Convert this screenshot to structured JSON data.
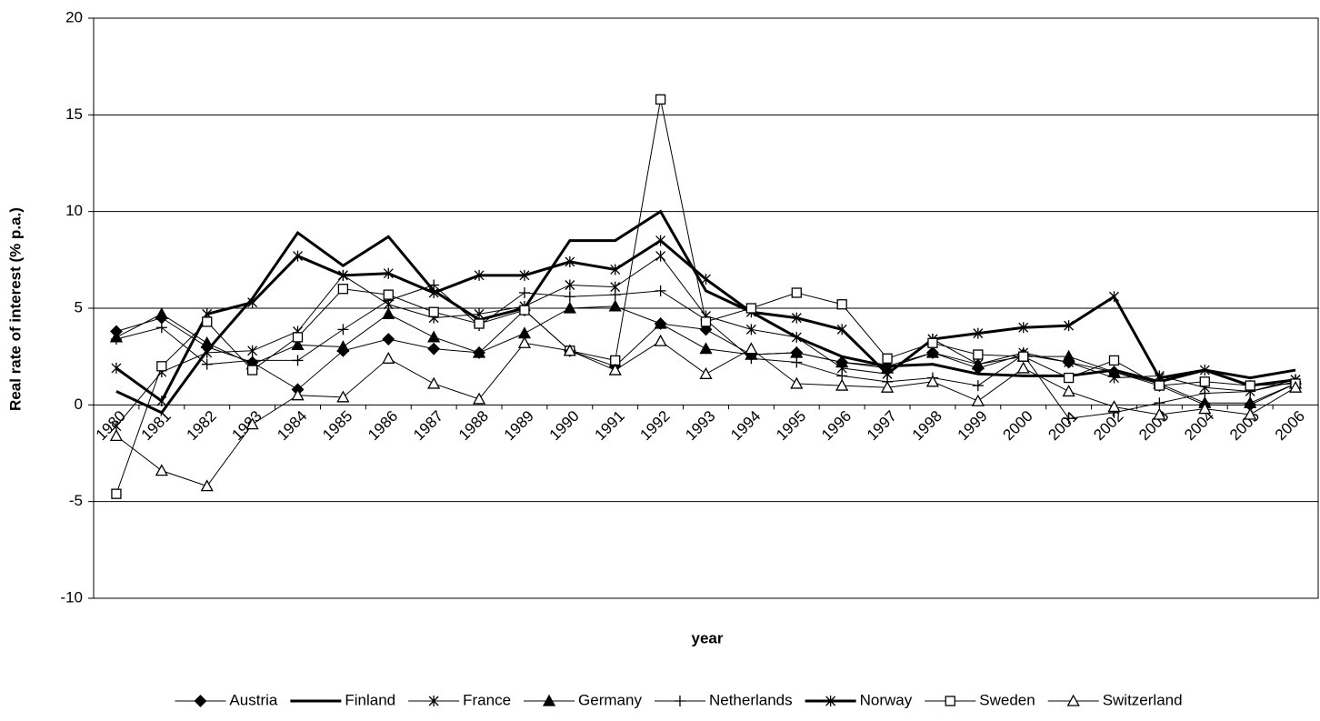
{
  "chart_data": {
    "type": "line",
    "y_label": "Real rate of interest (% p.a.)",
    "x_label": "year",
    "categories": [
      "1980",
      "1981",
      "1982",
      "1983",
      "1984",
      "1985",
      "1986",
      "1987",
      "1988",
      "1989",
      "1990",
      "1991",
      "1992",
      "1993",
      "1994",
      "1995",
      "1996",
      "1997",
      "1998",
      "1999",
      "2000",
      "2001",
      "2002",
      "2003",
      "2004",
      "2005",
      "2006"
    ],
    "ylim": [
      -10,
      20
    ],
    "yticks": [
      -10,
      -5,
      0,
      5,
      10,
      15,
      20
    ],
    "grid": true,
    "legend": "bottom",
    "series": [
      {
        "name": "Austria",
        "color": "#000000",
        "marker": "diamond",
        "line_width": 1,
        "values": [
          3.8,
          4.5,
          3.0,
          2.2,
          0.8,
          2.8,
          3.4,
          2.9,
          2.7,
          4.9,
          2.8,
          2.0,
          4.2,
          3.9,
          2.6,
          2.7,
          2.2,
          2.0,
          2.7,
          1.9,
          2.6,
          2.2,
          1.7,
          1.0,
          0.0,
          0.0,
          1.1
        ]
      },
      {
        "name": "Finland",
        "color": "#000000",
        "marker": "none",
        "line_width": 3,
        "values": [
          0.7,
          -0.4,
          2.8,
          5.5,
          8.9,
          7.2,
          8.7,
          5.9,
          4.4,
          5.0,
          8.5,
          8.5,
          10.0,
          5.9,
          4.8,
          3.5,
          2.5,
          2.0,
          2.1,
          1.6,
          1.5,
          1.5,
          1.8,
          1.2,
          1.8,
          1.4,
          1.8
        ]
      },
      {
        "name": "France",
        "color": "#000000",
        "marker": "star",
        "line_width": 1,
        "values": [
          -1.1,
          1.7,
          2.7,
          2.8,
          3.8,
          6.7,
          5.2,
          4.5,
          4.7,
          5.1,
          6.2,
          6.1,
          7.7,
          4.6,
          3.9,
          3.5,
          1.9,
          1.6,
          3.4,
          2.1,
          2.7,
          2.2,
          1.4,
          1.5,
          0.9,
          0.7,
          1.3
        ]
      },
      {
        "name": "Germany",
        "color": "#000000",
        "marker": "triangle-filled",
        "line_width": 1,
        "values": [
          3.5,
          4.7,
          3.2,
          2.1,
          3.1,
          3.0,
          4.7,
          3.5,
          2.7,
          3.7,
          5.0,
          5.1,
          4.2,
          2.9,
          2.6,
          2.7,
          2.2,
          1.9,
          2.7,
          2.1,
          2.5,
          2.5,
          1.7,
          1.1,
          0.1,
          0.1,
          1.1
        ]
      },
      {
        "name": "Netherlands",
        "color": "#000000",
        "marker": "plus",
        "line_width": 1,
        "values": [
          3.4,
          4.0,
          2.1,
          2.3,
          2.3,
          3.9,
          5.4,
          6.2,
          4.1,
          5.8,
          5.6,
          5.7,
          5.9,
          4.4,
          2.4,
          2.2,
          1.5,
          1.2,
          1.4,
          1.0,
          2.6,
          -0.7,
          -0.4,
          0.1,
          0.6,
          0.7,
          1.2
        ]
      },
      {
        "name": "Norway",
        "color": "#000000",
        "marker": "star",
        "line_width": 3,
        "values": [
          1.9,
          0.2,
          4.7,
          5.3,
          7.7,
          6.7,
          6.8,
          5.8,
          6.7,
          6.7,
          7.4,
          7.0,
          8.5,
          6.5,
          4.8,
          4.5,
          3.9,
          1.6,
          3.4,
          3.7,
          4.0,
          4.1,
          5.6,
          1.4,
          1.8,
          1.0,
          1.3
        ]
      },
      {
        "name": "Sweden",
        "color": "#000000",
        "marker": "square-open",
        "line_width": 1,
        "values": [
          -4.6,
          2.0,
          4.3,
          1.8,
          3.5,
          6.0,
          5.7,
          4.8,
          4.2,
          4.9,
          2.8,
          2.3,
          15.8,
          4.3,
          5.0,
          5.8,
          5.2,
          2.4,
          3.2,
          2.6,
          2.5,
          1.4,
          2.3,
          1.0,
          1.2,
          1.0,
          1.1
        ]
      },
      {
        "name": "Switzerland",
        "color": "#000000",
        "marker": "triangle-open",
        "line_width": 1,
        "values": [
          -1.6,
          -3.4,
          -4.2,
          -1.0,
          0.5,
          0.4,
          2.4,
          1.1,
          0.3,
          3.2,
          2.8,
          1.8,
          3.3,
          1.6,
          2.9,
          1.1,
          1.0,
          0.9,
          1.2,
          0.2,
          1.9,
          0.7,
          -0.1,
          -0.5,
          -0.2,
          -0.5,
          0.9
        ]
      }
    ]
  }
}
